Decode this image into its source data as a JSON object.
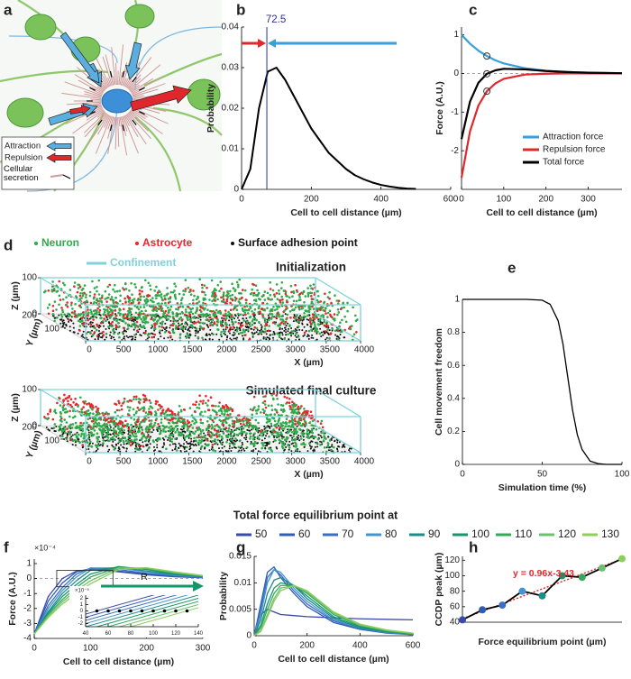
{
  "chart_data": [
    {
      "label": "a",
      "type": "diagram",
      "legend": [
        "Attraction",
        "Repulsion",
        "Cellular secretion"
      ]
    },
    {
      "label": "b",
      "type": "line",
      "xlabel": "Cell to cell distance (µm)",
      "ylabel": "Probability",
      "x": [
        0,
        25,
        50,
        75,
        100,
        125,
        150,
        175,
        200,
        225,
        250,
        275,
        300,
        325,
        350,
        375,
        400,
        425,
        450,
        475,
        500
      ],
      "series": [
        {
          "color": "#000000",
          "values": [
            0,
            0.005,
            0.02,
            0.029,
            0.03,
            0.027,
            0.023,
            0.019,
            0.015,
            0.012,
            0.009,
            0.007,
            0.005,
            0.0035,
            0.0025,
            0.0017,
            0.0011,
            0.0007,
            0.0004,
            0.0002,
            0.0001
          ]
        }
      ],
      "annotation": 72.5,
      "annotation_color": "#2e2e9a",
      "xlim": [
        0,
        600
      ],
      "ylim": [
        0,
        0.04
      ],
      "xticks": [
        0,
        200,
        400,
        600
      ],
      "yticks": [
        0,
        0.01,
        0.02,
        0.03,
        0.04
      ]
    },
    {
      "label": "c",
      "type": "line",
      "xlabel": "Cell to cell distance (µm)",
      "ylabel": "Force (A.U.)",
      "x": [
        0,
        20,
        40,
        60,
        80,
        100,
        150,
        200,
        250,
        300,
        380
      ],
      "series": [
        {
          "name": "Attraction force",
          "color": "#3a9fd8",
          "values": [
            1,
            0.77,
            0.59,
            0.45,
            0.34,
            0.26,
            0.135,
            0.07,
            0.036,
            0.018,
            0.006
          ]
        },
        {
          "name": "Repulsion force",
          "color": "#e0282c",
          "values": [
            -2.7,
            -1.5,
            -0.83,
            -0.46,
            -0.26,
            -0.14,
            -0.03,
            -0.008,
            0,
            0,
            0
          ]
        },
        {
          "name": "Total force",
          "color": "#000000",
          "values": [
            -1.7,
            -0.73,
            -0.24,
            -0.01,
            0.08,
            0.12,
            0.105,
            0.062,
            0.036,
            0.018,
            0.006
          ]
        }
      ],
      "marker_x": 60,
      "legend": "lower right",
      "xlim": [
        0,
        380
      ],
      "ylim": [
        -3,
        1.2
      ],
      "xticks": [
        0,
        100,
        200,
        300
      ],
      "yticks": [
        -2,
        -1,
        0,
        1
      ]
    },
    {
      "label": "d",
      "type": "scatter3d",
      "legend": [
        {
          "name": "Neuron",
          "color": "#2daa4a"
        },
        {
          "name": "Astrocyte",
          "color": "#e8262b"
        },
        {
          "name": "Surface adhesion point",
          "color": "#111111"
        }
      ],
      "confinement": {
        "name": "Confinement",
        "color": "#7fd3d8"
      },
      "panels": [
        "Initialization",
        "Simulated final culture"
      ],
      "xlabel": "X (µm)",
      "ylabel": "Y (µm)",
      "zlabel": "Z (µm)",
      "xlim": [
        0,
        4000
      ],
      "ylim": [
        0,
        200
      ],
      "zlim": [
        0,
        100
      ],
      "xticks": [
        0,
        500,
        1000,
        1500,
        2000,
        2500,
        3000,
        3500,
        4000
      ],
      "yticks": [
        100,
        200
      ],
      "zticks": [
        0,
        100
      ]
    },
    {
      "label": "e",
      "type": "line",
      "xlabel": "Simulation time (%)",
      "ylabel": "Cell movement freedom",
      "x": [
        0,
        10,
        20,
        30,
        40,
        50,
        55,
        60,
        63,
        66,
        69,
        72,
        75,
        80,
        85,
        90,
        100
      ],
      "series": [
        {
          "color": "#000000",
          "values": [
            1,
            1,
            1,
            1,
            1,
            0.995,
            0.97,
            0.87,
            0.73,
            0.53,
            0.33,
            0.18,
            0.09,
            0.02,
            0.005,
            0,
            0
          ]
        }
      ],
      "xlim": [
        0,
        100
      ],
      "ylim": [
        0,
        1
      ],
      "xticks": [
        0,
        50,
        100
      ],
      "yticks": [
        0,
        0.2,
        0.4,
        0.6,
        0.8,
        1
      ]
    },
    {
      "label": "f",
      "type": "line",
      "legend_title": "Total force equilibrium point at",
      "xlabel": "Cell to cell distance (µm)",
      "ylabel": "Force (A.U.)",
      "y_scale_label": "×10⁻⁴",
      "x": [
        0,
        25,
        50,
        75,
        100,
        150,
        200,
        250,
        300
      ],
      "series": [
        {
          "name": "50",
          "color": "#3a4aa8",
          "values": [
            -3.7,
            -1.2,
            0,
            0.5,
            0.6,
            0.45,
            0.25,
            0.12,
            0.05
          ]
        },
        {
          "name": "60",
          "color": "#2f5cb4",
          "values": [
            -3.7,
            -1.5,
            -0.3,
            0.45,
            0.65,
            0.5,
            0.3,
            0.15,
            0.06
          ]
        },
        {
          "name": "70",
          "color": "#3a6ec2",
          "values": [
            -3.7,
            -1.8,
            -0.6,
            0.3,
            0.7,
            0.6,
            0.35,
            0.18,
            0.08
          ]
        },
        {
          "name": "80",
          "color": "#4594d2",
          "values": [
            -3.7,
            -2.0,
            -0.8,
            0.1,
            0.7,
            0.7,
            0.45,
            0.22,
            0.1
          ]
        },
        {
          "name": "90",
          "color": "#1f8a8a",
          "values": [
            -3.7,
            -2.2,
            -1.0,
            -0.15,
            0.55,
            0.75,
            0.5,
            0.26,
            0.12
          ]
        },
        {
          "name": "100",
          "color": "#16956a",
          "values": [
            -3.7,
            -2.3,
            -1.2,
            -0.4,
            0.3,
            0.8,
            0.6,
            0.3,
            0.14
          ]
        },
        {
          "name": "110",
          "color": "#36a85a",
          "values": [
            -3.7,
            -2.4,
            -1.4,
            -0.6,
            0.1,
            0.75,
            0.65,
            0.35,
            0.16
          ]
        },
        {
          "name": "120",
          "color": "#6cc070",
          "values": [
            -3.7,
            -2.5,
            -1.55,
            -0.8,
            -0.15,
            0.7,
            0.7,
            0.4,
            0.18
          ]
        },
        {
          "name": "130",
          "color": "#8ccf5a",
          "values": [
            -3.7,
            -2.6,
            -1.7,
            -1.0,
            -0.35,
            0.6,
            0.72,
            0.45,
            0.2
          ]
        }
      ],
      "xlim": [
        0,
        300
      ],
      "ylim": [
        -4,
        1.3
      ],
      "xticks": [
        0,
        100,
        200,
        300
      ],
      "yticks": [
        -4,
        -3,
        -2,
        -1,
        0,
        1
      ],
      "inset": {
        "y_scale_label": "×10⁻⁵",
        "annotation": "R",
        "x": [
          40,
          140
        ],
        "series": [
          {
            "color": "#3a4aa8",
            "values": [
              -0.5,
              4.5
            ]
          },
          {
            "color": "#2f5cb4",
            "values": [
              -1,
              4
            ]
          },
          {
            "color": "#3a6ec2",
            "values": [
              -1.5,
              3.5
            ]
          },
          {
            "color": "#4594d2",
            "values": [
              -2,
              3
            ]
          },
          {
            "color": "#1f8a8a",
            "values": [
              -2.5,
              2.5
            ]
          },
          {
            "color": "#16956a",
            "values": [
              -3,
              2
            ]
          },
          {
            "color": "#36a85a",
            "values": [
              -3.5,
              1.5
            ]
          },
          {
            "color": "#6cc070",
            "values": [
              -4,
              1
            ]
          },
          {
            "color": "#8ccf5a",
            "values": [
              -4.5,
              0.5
            ]
          }
        ],
        "points_x": [
          50,
          60,
          70,
          80,
          90,
          100,
          110,
          120,
          130
        ],
        "points_y": [
          0,
          0,
          0,
          0,
          0,
          0,
          0,
          0,
          0
        ],
        "xlim": [
          40,
          140
        ],
        "ylim": [
          -2.5,
          2.5
        ],
        "xticks": [
          40,
          60,
          80,
          100,
          120,
          140
        ],
        "yticks": [
          -2,
          -1,
          0,
          1,
          2
        ]
      }
    },
    {
      "label": "g",
      "type": "line",
      "xlabel": "Cell to cell distance (µm)",
      "ylabel": "Probability",
      "x": [
        0,
        25,
        50,
        75,
        100,
        150,
        200,
        300,
        400,
        500,
        600
      ],
      "series": [
        {
          "color": "#3a4aa8",
          "values": [
            0,
            0.004,
            0.005,
            0.0045,
            0.004,
            0.0038,
            0.0036,
            0.0034,
            0.0032,
            0.0031,
            0.003
          ]
        },
        {
          "color": "#2f5cb4",
          "values": [
            0,
            0.006,
            0.012,
            0.013,
            0.011,
            0.008,
            0.0055,
            0.0025,
            0.0012,
            0.0005,
            0.0002
          ]
        },
        {
          "color": "#3a6ec2",
          "values": [
            0,
            0.005,
            0.011,
            0.0125,
            0.0115,
            0.0085,
            0.006,
            0.0028,
            0.0013,
            0.0006,
            0.0002
          ]
        },
        {
          "color": "#4594d2",
          "values": [
            0,
            0.004,
            0.01,
            0.0125,
            0.012,
            0.009,
            0.0065,
            0.003,
            0.0014,
            0.0006,
            0.0002
          ]
        },
        {
          "color": "#1f8a8a",
          "values": [
            0,
            0.003,
            0.008,
            0.0105,
            0.011,
            0.0095,
            0.007,
            0.0033,
            0.0015,
            0.0007,
            0.0003
          ]
        },
        {
          "color": "#16956a",
          "values": [
            0,
            0.002,
            0.006,
            0.009,
            0.01,
            0.0095,
            0.0075,
            0.0036,
            0.0017,
            0.0008,
            0.0003
          ]
        },
        {
          "color": "#36a85a",
          "values": [
            0,
            0.0015,
            0.005,
            0.008,
            0.0095,
            0.0095,
            0.008,
            0.004,
            0.0019,
            0.0009,
            0.0004
          ]
        },
        {
          "color": "#6cc070",
          "values": [
            0,
            0.001,
            0.004,
            0.007,
            0.009,
            0.0095,
            0.0083,
            0.0043,
            0.002,
            0.001,
            0.0004
          ]
        },
        {
          "color": "#8ccf5a",
          "values": [
            0,
            0.0008,
            0.0035,
            0.0065,
            0.0085,
            0.0095,
            0.0085,
            0.0045,
            0.0022,
            0.0011,
            0.0005
          ]
        }
      ],
      "xlim": [
        0,
        600
      ],
      "ylim": [
        0,
        0.015
      ],
      "xticks": [
        0,
        200,
        400,
        600
      ],
      "yticks": [
        0,
        0.005,
        0.01,
        0.015
      ]
    },
    {
      "label": "h",
      "type": "scatter",
      "xlabel": "Force equilibrium point (µm)",
      "ylabel": "CCDP peak (µm)",
      "x": [
        50,
        60,
        70,
        80,
        90,
        100,
        110,
        120,
        130
      ],
      "values": [
        43,
        56,
        62,
        80,
        74,
        100,
        98,
        110,
        122
      ],
      "colors": [
        "#3a4aa8",
        "#2f5cb4",
        "#3a6ec2",
        "#4594d2",
        "#1f8a8a",
        "#16956a",
        "#36a85a",
        "#6cc070",
        "#8ccf5a"
      ],
      "trend": {
        "slope": 0.96,
        "intercept": -3.43,
        "label": "y = 0.96x-3.43",
        "color": "#e0282c"
      },
      "xlim": [
        50,
        130
      ],
      "ylim": [
        40,
        125
      ],
      "yticks": [
        40,
        60,
        80,
        100,
        120
      ]
    }
  ]
}
